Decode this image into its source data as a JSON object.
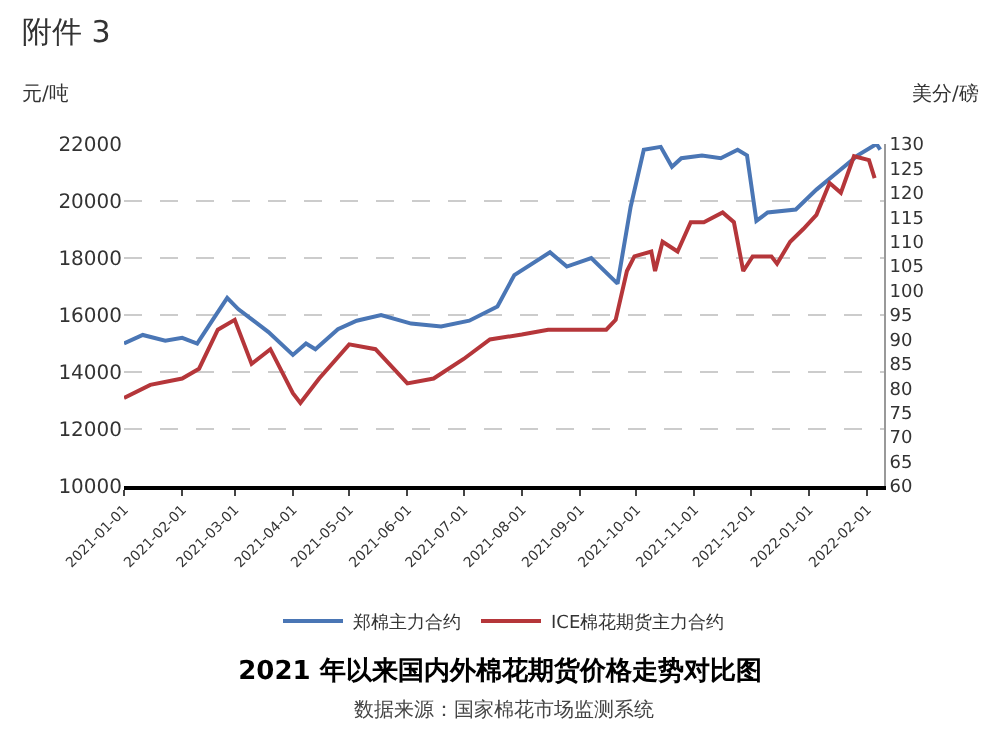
{
  "chart_data": {
    "type": "line",
    "title": "2021 年以来国内外棉花期货价格走势对比图",
    "subtitle": "数据来源：国家棉花市场监测系统",
    "ylabel": "元/吨",
    "y2label": "美分/磅",
    "annotations": [
      "附件 3"
    ],
    "xlim": [
      "2021-01-01",
      "2022-02-10"
    ],
    "xticks": [
      "2021-01-01",
      "2021-02-01",
      "2021-03-01",
      "2021-04-01",
      "2021-05-01",
      "2021-06-01",
      "2021-07-01",
      "2021-08-01",
      "2021-09-01",
      "2021-10-01",
      "2021-11-01",
      "2021-12-01",
      "2022-01-01",
      "2022-02-01"
    ],
    "ylim": [
      10000,
      22000
    ],
    "yticks": [
      10000,
      12000,
      14000,
      16000,
      18000,
      20000,
      22000
    ],
    "y2lim": [
      60,
      130
    ],
    "y2ticks": [
      60,
      65,
      70,
      75,
      80,
      85,
      90,
      95,
      100,
      105,
      110,
      115,
      120,
      125,
      130
    ],
    "grid": "y",
    "legend": "bottom",
    "marker": "none",
    "line_style": "solid",
    "series": [
      {
        "name": "郑棉主力合约",
        "color": "#4a76b5",
        "x": [
          "2021-01-01",
          "2021-01-11",
          "2021-01-23",
          "2021-02-01",
          "2021-02-09",
          "2021-02-17",
          "2021-02-25",
          "2021-03-03",
          "2021-03-11",
          "2021-03-19",
          "2021-04-01",
          "2021-04-08",
          "2021-04-13",
          "2021-04-25",
          "2021-05-05",
          "2021-05-18",
          "2021-06-03",
          "2021-06-19",
          "2021-07-04",
          "2021-07-19",
          "2021-07-28",
          "2021-08-16",
          "2021-08-25",
          "2021-09-07",
          "2021-09-21",
          "2021-09-28",
          "2021-10-05",
          "2021-10-14",
          "2021-10-20",
          "2021-10-25",
          "2021-11-05",
          "2021-11-15",
          "2021-11-24",
          "2021-11-29",
          "2021-12-04",
          "2021-12-10",
          "2021-12-25",
          "2022-01-05",
          "2022-01-16",
          "2022-01-27",
          "2022-02-06",
          "2022-02-08"
        ],
        "values": [
          15000,
          15300,
          15100,
          15200,
          15000,
          15800,
          16600,
          16200,
          15800,
          15400,
          14600,
          15000,
          14800,
          15500,
          15800,
          16000,
          15700,
          15600,
          15800,
          16300,
          17400,
          18200,
          17700,
          18000,
          17100,
          19800,
          21800,
          21900,
          21200,
          21500,
          21600,
          21500,
          21800,
          21600,
          19300,
          19600,
          19700,
          20400,
          21000,
          21600,
          22000,
          21800
        ]
      },
      {
        "name": "ICE棉花期货主力合约",
        "color": "#b5363a",
        "axis": "y2",
        "x": [
          "2021-01-01",
          "2021-01-15",
          "2021-02-01",
          "2021-02-10",
          "2021-02-20",
          "2021-03-01",
          "2021-03-10",
          "2021-03-20",
          "2021-04-01",
          "2021-04-05",
          "2021-04-15",
          "2021-05-01",
          "2021-05-15",
          "2021-06-01",
          "2021-06-15",
          "2021-07-01",
          "2021-07-15",
          "2021-08-01",
          "2021-08-15",
          "2021-09-01",
          "2021-09-15",
          "2021-09-20",
          "2021-09-26",
          "2021-09-30",
          "2021-10-09",
          "2021-10-11",
          "2021-10-15",
          "2021-10-23",
          "2021-10-30",
          "2021-11-06",
          "2021-11-16",
          "2021-11-22",
          "2021-11-27",
          "2021-12-02",
          "2021-12-12",
          "2021-12-15",
          "2021-12-22",
          "2021-12-29",
          "2022-01-05",
          "2022-01-12",
          "2022-01-18",
          "2022-01-25",
          "2022-02-02",
          "2022-02-05"
        ],
        "values": [
          78,
          80.7,
          82,
          84,
          92,
          94,
          85,
          88,
          79,
          77,
          82,
          89,
          88,
          81,
          82,
          86,
          90,
          91,
          92,
          92,
          92,
          94,
          104,
          107,
          108,
          104,
          110,
          108,
          114,
          114,
          116,
          114,
          104,
          107,
          107,
          105.5,
          110,
          112.6,
          115.5,
          122,
          120,
          127.5,
          126.7,
          123
        ]
      }
    ]
  }
}
